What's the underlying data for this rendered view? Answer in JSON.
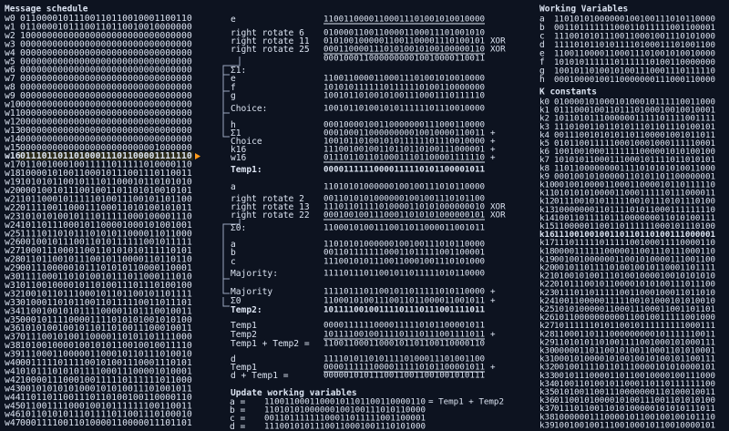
{
  "message_schedule": {
    "title": "Message schedule",
    "rows": [
      {
        "label": "w0",
        "bits": "01100001011100110110010001100110"
      },
      {
        "label": "w1",
        "bits": "01100001011100110110010010000000"
      },
      {
        "label": "w2",
        "bits": "10000000000000000000000000000000"
      },
      {
        "label": "w3",
        "bits": "00000000000000000000000000000000"
      },
      {
        "label": "w4",
        "bits": "00000000000000000000000000000000"
      },
      {
        "label": "w5",
        "bits": "00000000000000000000000000000000"
      },
      {
        "label": "w6",
        "bits": "00000000000000000000000000000000"
      },
      {
        "label": "w7",
        "bits": "00000000000000000000000000000000"
      },
      {
        "label": "w8",
        "bits": "00000000000000000000000000000000"
      },
      {
        "label": "w9",
        "bits": "00000000000000000000000000000000"
      },
      {
        "label": "w10",
        "bits": "00000000000000000000000000000000"
      },
      {
        "label": "w11",
        "bits": "00000000000000000000000000000000"
      },
      {
        "label": "w12",
        "bits": "00000000000000000000000000000000"
      },
      {
        "label": "w13",
        "bits": "00000000000000000000000000000000"
      },
      {
        "label": "w14",
        "bits": "00000000000000000000000000000000"
      },
      {
        "label": "w15",
        "bits": "00000000000000000000000001000000"
      },
      {
        "label": "w16",
        "bits": "01110110110100011101100001111110"
      },
      {
        "label": "w17",
        "bits": "01100100010011111011111010000110"
      },
      {
        "label": "w18",
        "bits": "10000101001100010111001110110011"
      },
      {
        "label": "w19",
        "bits": "10101011001011101100010110101010"
      },
      {
        "label": "w20",
        "bits": "00010010111001001101101010010101"
      },
      {
        "label": "w21",
        "bits": "10110001011111010011100101101100"
      },
      {
        "label": "w22",
        "bits": "01111001100011100011010100101011"
      },
      {
        "label": "w23",
        "bits": "10101010010111011111000100001110"
      },
      {
        "label": "w24",
        "bits": "10110111000101100001000101001001"
      },
      {
        "label": "w25",
        "bits": "11110110101110101011000011011000"
      },
      {
        "label": "w26",
        "bits": "00100101110011010111111001011111"
      },
      {
        "label": "w27",
        "bits": "10001110001100110101010111110101"
      },
      {
        "label": "w28",
        "bits": "01101100101110010110000110110110"
      },
      {
        "label": "w29",
        "bits": "00111000001011101010110000110001"
      },
      {
        "label": "w30",
        "bits": "11110001101010010111011000111010"
      },
      {
        "label": "w31",
        "bits": "01100100001011010011101110100100"
      },
      {
        "label": "w32",
        "bits": "10010110111000101101100101101111"
      },
      {
        "label": "w33",
        "bits": "01000110101100110111110011011101"
      },
      {
        "label": "w34",
        "bits": "11001001010111100001101110010011"
      },
      {
        "label": "w35",
        "bits": "00010111100001111010101001010100"
      },
      {
        "label": "w36",
        "bits": "10101001001011011010011100010011"
      },
      {
        "label": "w37",
        "bits": "01110010100110000110101101111000"
      },
      {
        "label": "w38",
        "bits": "10100100001001010110010010011110"
      },
      {
        "label": "w39",
        "bits": "11100011000001100010110111010010"
      },
      {
        "label": "w40",
        "bits": "00111110111100101001110001110101"
      },
      {
        "label": "w41",
        "bits": "01011101010111100011100001010001"
      },
      {
        "label": "w42",
        "bits": "10000111000100111110111111011000"
      },
      {
        "label": "w43",
        "bits": "00101010101000101010011101001011"
      },
      {
        "label": "w44",
        "bits": "11011011001110110100100110000110"
      },
      {
        "label": "w45",
        "bits": "01100111100010010111111100110011"
      },
      {
        "label": "w46",
        "bits": "10110101011101111011001110100010"
      },
      {
        "label": "w47",
        "bits": "00011110011010000110000011101101"
      }
    ]
  },
  "working_variables": {
    "title": "Working Variables",
    "rows": [
      {
        "label": "a",
        "bits": "11010101000000100100111010110000",
        "color": "#ff66d9"
      },
      {
        "label": "b",
        "bits": "00110111111100011011111001100001",
        "color": "#c8ff3c"
      },
      {
        "label": "c",
        "bits": "11100101011100110001001110101000",
        "color": "#ff8c1a"
      },
      {
        "label": "d",
        "bits": "11110101101011110100011101001100",
        "color": "#5a9bff"
      },
      {
        "label": "e",
        "bits": "11001100001100011101001010010000",
        "color": "#3fdc5a"
      },
      {
        "label": "f",
        "bits": "10101011111101111110100110000000",
        "color": "#ff3b3b"
      },
      {
        "label": "g",
        "bits": "10010110100101001110001110111110",
        "color": "#7b8cff"
      },
      {
        "label": "h",
        "bits": "00010000100110000000111000110000",
        "color": "#b07cff"
      }
    ]
  },
  "k_constants": {
    "title": "K constants",
    "rows": [
      {
        "label": "k0",
        "bits": "01000010100010100010111110011000"
      },
      {
        "label": "k1",
        "bits": "01110001001101110100010010010001"
      },
      {
        "label": "k2",
        "bits": "10110101110000001111101111001111"
      },
      {
        "label": "k3",
        "bits": "11101001101101011101101110100101"
      },
      {
        "label": "k4",
        "bits": "00111001010101101100001001011011"
      },
      {
        "label": "k5",
        "bits": "01011001111100010001000111110001"
      },
      {
        "label": "k6",
        "bits": "10010010001111111000001010100100"
      },
      {
        "label": "k7",
        "bits": "10101011000111000101111011010101"
      },
      {
        "label": "k8",
        "bits": "11011000000001111010101010011000"
      },
      {
        "label": "k9",
        "bits": "00010010100000110101101100000001"
      },
      {
        "label": "k10",
        "bits": "00100100001100011000010110111110"
      },
      {
        "label": "k11",
        "bits": "01010101000011000111110111000011"
      },
      {
        "label": "k12",
        "bits": "01110010101111100101110101110100"
      },
      {
        "label": "k13",
        "bits": "10000000110111101011000111111110"
      },
      {
        "label": "k14",
        "bits": "10011011110111000000011010100111"
      },
      {
        "label": "k15",
        "bits": "11000001100110111111000101110100"
      },
      {
        "label": "k16",
        "bits": "11100100100110110110100111000001"
      },
      {
        "label": "k17",
        "bits": "11101111101111100100011110000110"
      },
      {
        "label": "k18",
        "bits": "00001111110000011001110111000110"
      },
      {
        "label": "k19",
        "bits": "00100100000011001010000111001100"
      },
      {
        "label": "k20",
        "bits": "00101101111010010010110001101111"
      },
      {
        "label": "k21",
        "bits": "01001010011101001000010010101010"
      },
      {
        "label": "k22",
        "bits": "01011100101100001010100111011100"
      },
      {
        "label": "k23",
        "bits": "01110110111110011000100011011010"
      },
      {
        "label": "k24",
        "bits": "10011000001111100101000101010010"
      },
      {
        "label": "k25",
        "bits": "10101000001100011100011001101101"
      },
      {
        "label": "k26",
        "bits": "10110000000000110010011111001000"
      },
      {
        "label": "k27",
        "bits": "10111111010110010111111111000111"
      },
      {
        "label": "k28",
        "bits": "11000110111000000000101111110011"
      },
      {
        "label": "k29",
        "bits": "11010101101001111001000101000111"
      },
      {
        "label": "k30",
        "bits": "00000110110010100110001101010001"
      },
      {
        "label": "k31",
        "bits": "00010100001010010010100101100111"
      },
      {
        "label": "k32",
        "bits": "00100111101101110000101010000101"
      },
      {
        "label": "k33",
        "bits": "00101110000110110010000100111000"
      },
      {
        "label": "k34",
        "bits": "01001101001011000110110111111100"
      },
      {
        "label": "k35",
        "bits": "01010011001110000000110100010011"
      },
      {
        "label": "k36",
        "bits": "01100101000010100111001101010100"
      },
      {
        "label": "k37",
        "bits": "01110110011010100000101010111011"
      },
      {
        "label": "k38",
        "bits": "10000001110000101100100100101110"
      },
      {
        "label": "k39",
        "bits": "10010010011100100010110010000101"
      }
    ]
  },
  "computation": {
    "rows": [
      {
        "label": "e",
        "bits": "11001100001100011101001010010000",
        "color": "#3fdc5a"
      },
      {
        "label": "right rotate 6",
        "bits": "01000011001100001100011101001010",
        "color": "#dce4f2"
      },
      {
        "label": "right rotate 11",
        "bits": "01010010000011001100001110100101",
        "op": "XOR",
        "color": "#dce4f2"
      },
      {
        "label": "right rotate 25",
        "bits": "00011000011101010010100100000110",
        "op": "XOR",
        "color": "#dce4f2"
      },
      {
        "bits": "00010001100000000010010000110011",
        "color": "#dce4f2"
      },
      {
        "label": "Σ1:",
        "color": "#dce4f2"
      },
      {
        "label": "e",
        "bits": "11001100001100011101001010010000",
        "color": "#3fdc5a"
      },
      {
        "label": "f",
        "bits": "10101011111101111110100110000000",
        "color": "#ff3b3b"
      },
      {
        "label": "g",
        "bits": "10010110100101001110001110111110",
        "color": "#7b8cff"
      },
      {
        "label": "Choice:",
        "bits": "10010110100101011111101110010000",
        "color": "#dce4f2"
      },
      {
        "label": "h",
        "bits": "00010000100110000000111000110000",
        "color": "#b07cff"
      },
      {
        "label": "Σ1",
        "bits": "00010001100000000010010000110011",
        "op": "+",
        "color": "#dce4f2"
      },
      {
        "label": "Choice",
        "bits": "10010110100101011111101110010000",
        "op": "+",
        "color": "#dce4f2"
      },
      {
        "label": "k16",
        "bits": "11100100100110110110100111000001",
        "op": "+",
        "color": "#ff3b3b"
      },
      {
        "label": "w16",
        "bits": "01110110110100011101100001111110",
        "op": "+",
        "color": "#ffd23c"
      },
      {
        "label": "Temp1:",
        "bits": "00001111110000111110101100001011",
        "color": "#ffffff"
      },
      {
        "label": "a",
        "bits": "11010101000000100100111010110000",
        "color": "#ff66d9"
      },
      {
        "label": "right rotate 2",
        "bits": "00110101010000001001001110101100",
        "color": "#dce4f2"
      },
      {
        "label": "right rotate 13",
        "bits": "11101101111010000110101000000010",
        "op": "XOR",
        "color": "#dce4f2"
      },
      {
        "label": "right rotate 22",
        "bits": "00010010011100011010101000000101",
        "op": "XOR",
        "color": "#dce4f2"
      },
      {
        "label": "Σ0:",
        "bits": "11000101001110011011000011001011",
        "color": "#dce4f2"
      },
      {
        "label": "a",
        "bits": "11010101000000100100111010110000",
        "color": "#ff66d9"
      },
      {
        "label": "b",
        "bits": "00110111111100011011111001100001",
        "color": "#c8ff3c"
      },
      {
        "label": "c",
        "bits": "11100101011100110001001110101000",
        "color": "#ff8c1a"
      },
      {
        "label": "Majority:",
        "bits": "11110111011001011011111010110000",
        "color": "#dce4f2"
      },
      {
        "label": "Majority",
        "bits": "11110111011001011011111010110000",
        "op": "+",
        "color": "#dce4f2"
      },
      {
        "label": "Σ0",
        "bits": "11000101001110011011000011001011",
        "op": "+",
        "color": "#dce4f2"
      },
      {
        "label": "Temp2:",
        "bits": "10111100100111101110111001111011",
        "color": "#ffffff"
      },
      {
        "label": "Temp1",
        "bits": "00001111110000111110101100001011",
        "color": "#dce4f2"
      },
      {
        "label": "Temp2",
        "bits": "10111100100111101110111001111011",
        "op": "+",
        "color": "#dce4f2"
      },
      {
        "label": "Temp1 + Temp2 =",
        "bits": "11001100011000101101100110000110",
        "color": "#dce4f2"
      },
      {
        "label": "d",
        "bits": "11110101101011110100011101001100",
        "color": "#5a9bff"
      },
      {
        "label": "Temp1",
        "bits": "00001111110000111110101100001011",
        "op": "+",
        "color": "#dce4f2"
      },
      {
        "label": "d + Temp1 =",
        "bits": "00000101011100110011001001010111",
        "color": "#dce4f2"
      },
      {
        "label": "Update working variables",
        "color": "#ffffff"
      },
      {
        "label": "a =",
        "bits": "11001100011000101101100110000110",
        "op": "= Temp1 + Temp2",
        "color": "#dce4f2"
      },
      {
        "label": "b =",
        "bits": "11010101000000100100111010110000",
        "color": "#ff66d9"
      },
      {
        "label": "c =",
        "bits": "00110111111100011011111001100001",
        "color": "#c8ff3c"
      },
      {
        "label": "d =",
        "bits": "11100101011100110001001110101000",
        "color": "#ff8c1a"
      }
    ]
  }
}
